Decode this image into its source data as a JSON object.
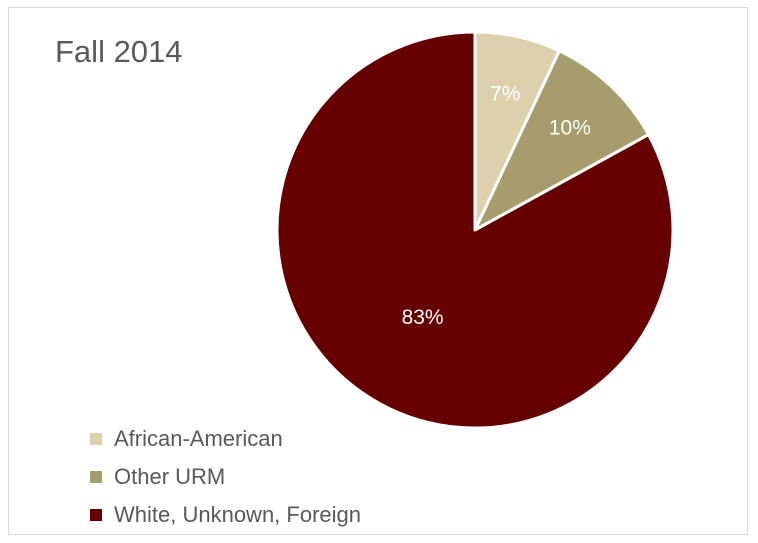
{
  "chart_data": {
    "type": "pie",
    "title": "Fall 2014",
    "categories": [
      "African-American",
      "Other URM",
      "White, Unknown, Foreign"
    ],
    "values": [
      7,
      10,
      83
    ],
    "value_labels": [
      "7%",
      "10%",
      "83%"
    ],
    "colors": [
      "#ddd0ad",
      "#a69c6c",
      "#660000"
    ],
    "start_angle": "12 o'clock",
    "direction": "clockwise",
    "legend_position": "bottom-left",
    "slice_border_color": "#ffffff"
  }
}
